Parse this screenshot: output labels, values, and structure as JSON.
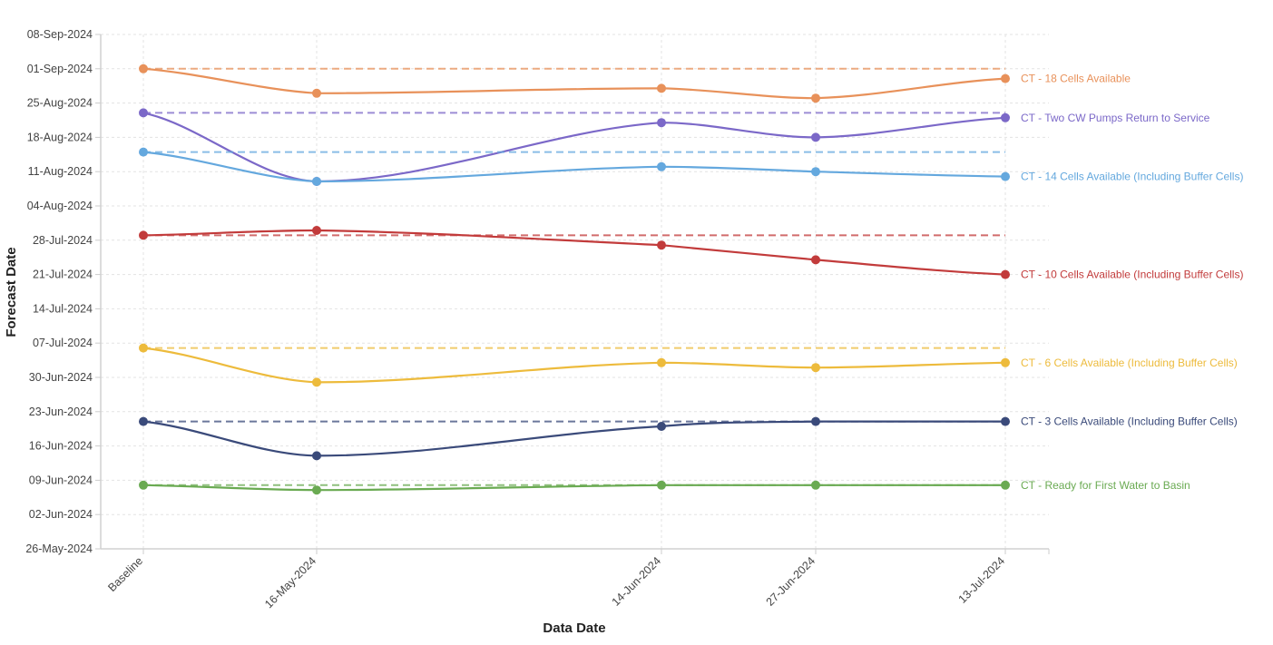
{
  "chart_data": {
    "type": "line",
    "title": "",
    "xlabel": "Data Date",
    "ylabel": "Forecast Date",
    "categories": [
      "Baseline",
      "16-May-2024",
      "14-Jun-2024",
      "27-Jun-2024",
      "13-Jul-2024"
    ],
    "x_positions_days": [
      0,
      26,
      78,
      101,
      129
    ],
    "y_ticks": [
      "26-May-2024",
      "02-Jun-2024",
      "09-Jun-2024",
      "16-Jun-2024",
      "23-Jun-2024",
      "30-Jun-2024",
      "07-Jul-2024",
      "14-Jul-2024",
      "21-Jul-2024",
      "28-Jul-2024",
      "04-Aug-2024",
      "11-Aug-2024",
      "18-Aug-2024",
      "25-Aug-2024",
      "01-Sep-2024",
      "08-Sep-2024"
    ],
    "ylim": [
      "26-May-2024",
      "08-Sep-2024"
    ],
    "grid": true,
    "legend_position": "inline-right",
    "baseline_reference": "dashed horizontal line at each series' Baseline value",
    "series": [
      {
        "name": "CT - 18 Cells Available",
        "color": "#E8915A",
        "values": [
          "01-Sep-2024",
          "27-Aug-2024",
          "28-Aug-2024",
          "26-Aug-2024",
          "30-Aug-2024"
        ]
      },
      {
        "name": "CT - Two CW Pumps Return to Service",
        "color": "#7B68C8",
        "values": [
          "23-Aug-2024",
          "09-Aug-2024",
          "21-Aug-2024",
          "18-Aug-2024",
          "22-Aug-2024"
        ]
      },
      {
        "name": "CT - 14 Cells Available (Including Buffer Cells)",
        "color": "#64A8DE",
        "values": [
          "15-Aug-2024",
          "09-Aug-2024",
          "12-Aug-2024",
          "11-Aug-2024",
          "10-Aug-2024"
        ]
      },
      {
        "name": "CT - 10 Cells Available (Including Buffer Cells)",
        "color": "#C23B3B",
        "values": [
          "29-Jul-2024",
          "30-Jul-2024",
          "27-Jul-2024",
          "24-Jul-2024",
          "21-Jul-2024"
        ]
      },
      {
        "name": "CT - 6 Cells Available (Including Buffer Cells)",
        "color": "#EDBB3C",
        "values": [
          "06-Jul-2024",
          "29-Jun-2024",
          "03-Jul-2024",
          "02-Jul-2024",
          "03-Jul-2024"
        ]
      },
      {
        "name": "CT - 3 Cells Available (Including Buffer Cells)",
        "color": "#3A4A7A",
        "values": [
          "21-Jun-2024",
          "14-Jun-2024",
          "20-Jun-2024",
          "21-Jun-2024",
          "21-Jun-2024"
        ]
      },
      {
        "name": "CT - Ready for First Water to Basin",
        "color": "#6AAA52",
        "values": [
          "08-Jun-2024",
          "07-Jun-2024",
          "08-Jun-2024",
          "08-Jun-2024",
          "08-Jun-2024"
        ]
      }
    ]
  }
}
